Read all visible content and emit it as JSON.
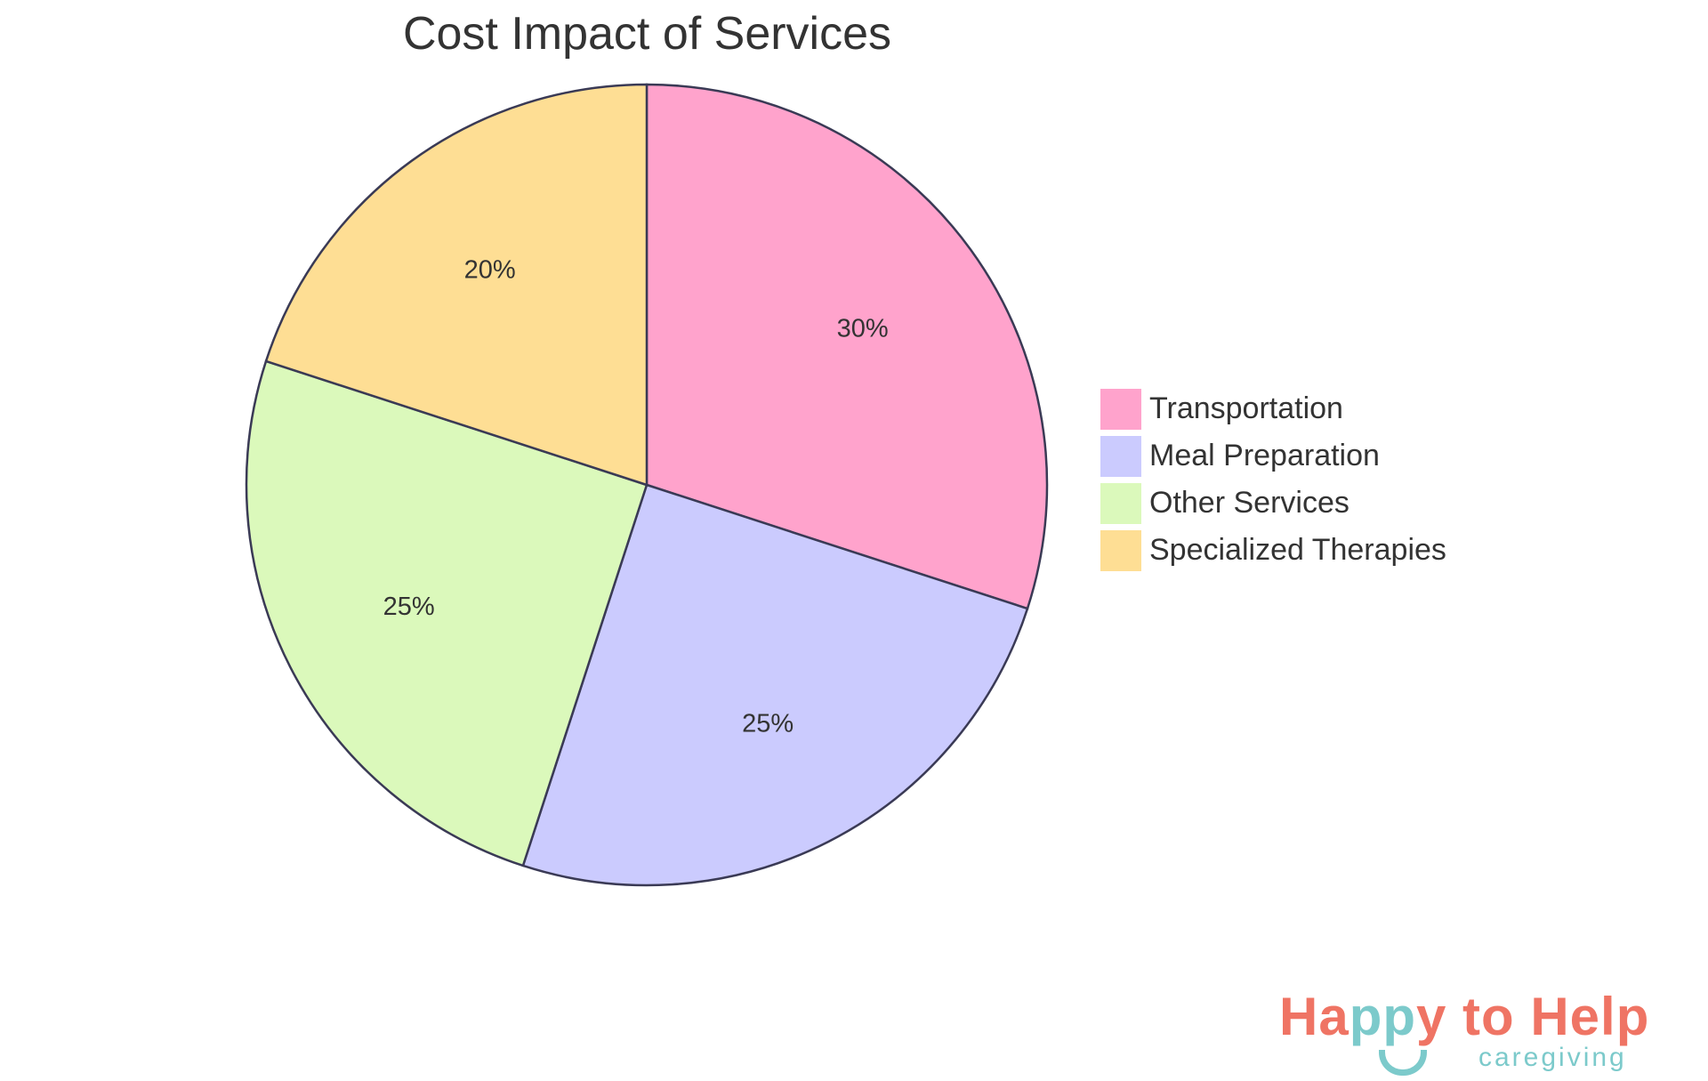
{
  "chart_data": {
    "type": "pie",
    "title": "Cost Impact of Services",
    "categories": [
      "Transportation",
      "Meal Preparation",
      "Other Services",
      "Specialized Therapies"
    ],
    "values": [
      30,
      25,
      25,
      20
    ],
    "value_labels": [
      "30%",
      "25%",
      "25%",
      "20%"
    ],
    "colors": [
      "#ffa3cc",
      "#cbcbfe",
      "#dbf9bb",
      "#fede94"
    ],
    "stroke_color": "#3a3a55",
    "legend_position": "right",
    "start_angle": "12 o'clock, clockwise"
  },
  "legend": {
    "items": [
      {
        "label": "Transportation",
        "color": "#ffa3cc"
      },
      {
        "label": "Meal Preparation",
        "color": "#cbcbfe"
      },
      {
        "label": "Other Services",
        "color": "#dbf9bb"
      },
      {
        "label": "Specialized Therapies",
        "color": "#fede94"
      }
    ]
  },
  "logo": {
    "part1": "Ha",
    "part2": "pp",
    "part3": "y to Help",
    "subtitle": "caregiving",
    "primary_color": "#ef7464",
    "secondary_color": "#7ccacb"
  }
}
